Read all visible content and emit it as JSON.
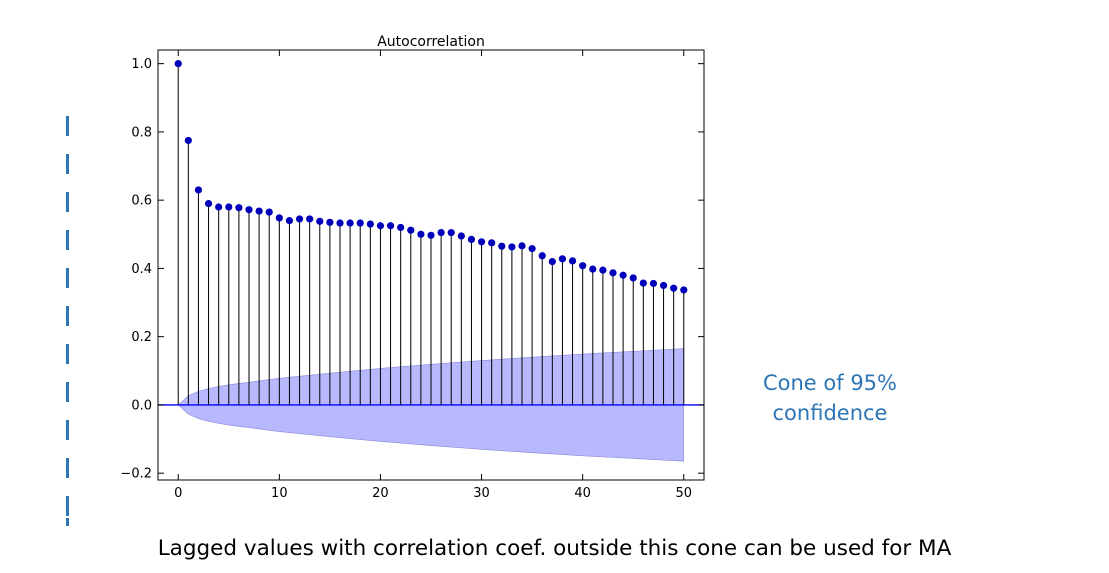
{
  "chart_data": {
    "type": "line",
    "title": "Autocorrelation",
    "xlabel": "",
    "ylabel": "",
    "xlim": [
      -2,
      52
    ],
    "ylim": [
      -0.22,
      1.04
    ],
    "xticks": [
      0,
      10,
      20,
      30,
      40,
      50
    ],
    "xtick_labels": [
      "0",
      "10",
      "20",
      "30",
      "40",
      "50"
    ],
    "yticks": [
      -0.2,
      0.0,
      0.2,
      0.4,
      0.6,
      0.8,
      1.0
    ],
    "ytick_labels": [
      "−0.2",
      "0.0",
      "0.2",
      "0.4",
      "0.6",
      "0.8",
      "1.0"
    ],
    "grid": false,
    "lags": [
      0,
      1,
      2,
      3,
      4,
      5,
      6,
      7,
      8,
      9,
      10,
      11,
      12,
      13,
      14,
      15,
      16,
      17,
      18,
      19,
      20,
      21,
      22,
      23,
      24,
      25,
      26,
      27,
      28,
      29,
      30,
      31,
      32,
      33,
      34,
      35,
      36,
      37,
      38,
      39,
      40,
      41,
      42,
      43,
      44,
      45,
      46,
      47,
      48,
      49,
      50
    ],
    "acf": [
      1.0,
      0.775,
      0.63,
      0.59,
      0.58,
      0.58,
      0.578,
      0.572,
      0.568,
      0.565,
      0.548,
      0.54,
      0.545,
      0.545,
      0.538,
      0.535,
      0.533,
      0.533,
      0.533,
      0.53,
      0.525,
      0.525,
      0.52,
      0.512,
      0.5,
      0.497,
      0.505,
      0.505,
      0.495,
      0.485,
      0.478,
      0.475,
      0.465,
      0.463,
      0.466,
      0.458,
      0.437,
      0.42,
      0.428,
      0.422,
      0.408,
      0.398,
      0.395,
      0.387,
      0.38,
      0.372,
      0.357,
      0.356,
      0.35,
      0.342,
      0.337
    ],
    "confidence_band": {
      "level": "95%",
      "lags": [
        0,
        1,
        2,
        3,
        4,
        5,
        10,
        15,
        20,
        25,
        30,
        35,
        40,
        45,
        50
      ],
      "upper": [
        0.0,
        0.027,
        0.04,
        0.048,
        0.054,
        0.059,
        0.078,
        0.093,
        0.107,
        0.119,
        0.13,
        0.14,
        0.149,
        0.157,
        0.165
      ],
      "lower": [
        0.0,
        -0.027,
        -0.04,
        -0.048,
        -0.054,
        -0.059,
        -0.078,
        -0.093,
        -0.107,
        -0.119,
        -0.13,
        -0.14,
        -0.149,
        -0.157,
        -0.165
      ]
    },
    "colors": {
      "marker": "#0000bb",
      "stem": "#000000",
      "band_fill": "#b8b8ff",
      "zero_line": "#0000ff"
    }
  },
  "annotation": {
    "line1": "Cone of 95%",
    "line2": "confidence",
    "color": "#2e75b6"
  },
  "caption": "Lagged values with correlation coef. outside this cone  can be used for MA"
}
